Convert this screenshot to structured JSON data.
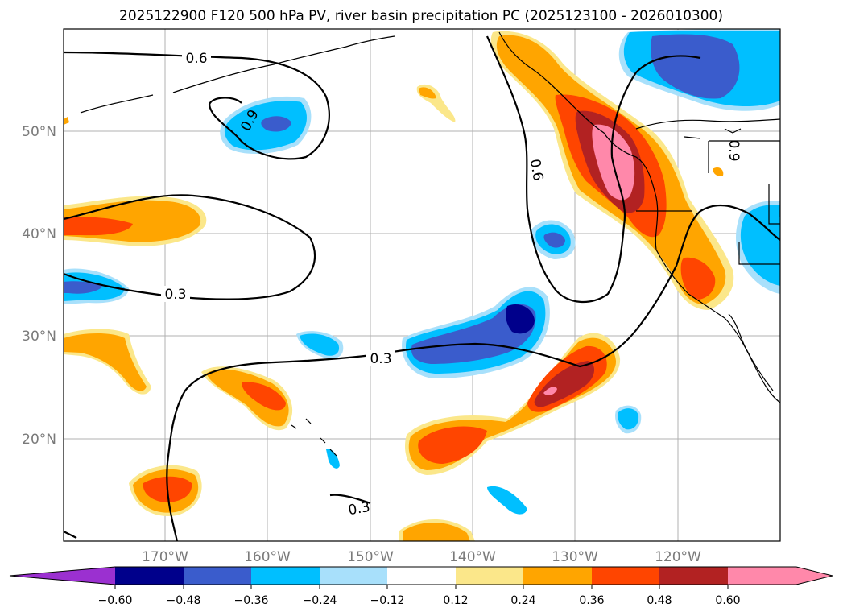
{
  "title": "2025122900 F120 500 hPa PV, river basin precipitation PC (2025123100 - 2026010300)",
  "lat_labels": [
    "50°N",
    "40°N",
    "30°N",
    "20°N"
  ],
  "lon_labels": [
    "170°W",
    "160°W",
    "150°W",
    "140°W",
    "130°W",
    "120°W"
  ],
  "contour_labels": {
    "c06_top": "0.6",
    "c09": "0.9",
    "c06_mid": "0.6",
    "c03_left": "0.3",
    "c03_center": "0.3",
    "c03_bottom": "0.3",
    "c09_east": "0.9"
  },
  "colorbar": {
    "ticks": [
      "−0.60",
      "−0.48",
      "−0.36",
      "−0.24",
      "−0.12",
      "0.12",
      "0.24",
      "0.36",
      "0.48",
      "0.60"
    ],
    "colors": {
      "under": "#9b30d0",
      "n060": "#00008b",
      "n048": "#3a5ccc",
      "n036": "#00bfff",
      "n024": "#a8e0fb",
      "neutral": "#ffffff",
      "p012": "#fbe78a",
      "p024": "#ffa500",
      "p036": "#ff4500",
      "p048": "#b22222",
      "p060": "#ff88aa"
    }
  }
}
